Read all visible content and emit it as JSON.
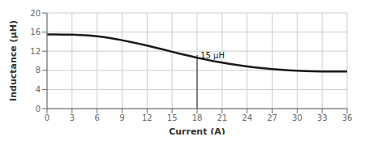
{
  "chart_data": {
    "type": "line",
    "title": "",
    "xlabel": "Current (A)",
    "ylabel": "Inductance (μH)",
    "x": [
      0,
      0.5,
      1,
      2,
      3,
      4,
      5,
      6,
      7,
      8,
      9,
      10,
      11,
      12,
      13,
      14,
      15,
      16,
      17,
      18,
      19,
      20,
      21,
      22,
      23,
      24,
      25,
      26,
      27,
      28,
      29,
      30,
      31,
      32,
      33,
      34,
      35,
      36
    ],
    "values": [
      15.5,
      15.5,
      15.5,
      15.48,
      15.45,
      15.38,
      15.28,
      15.12,
      14.9,
      14.62,
      14.3,
      13.95,
      13.58,
      13.18,
      12.75,
      12.32,
      11.88,
      11.45,
      11.05,
      10.65,
      10.28,
      9.93,
      9.62,
      9.33,
      9.07,
      8.83,
      8.62,
      8.43,
      8.27,
      8.13,
      8.01,
      7.92,
      7.85,
      7.8,
      7.77,
      7.76,
      7.76,
      7.76
    ],
    "color": "#1a1a1a",
    "xlim": [
      0,
      36
    ],
    "ylim": [
      0,
      20
    ],
    "xticks": [
      0,
      3,
      6,
      9,
      12,
      15,
      18,
      21,
      24,
      27,
      30,
      33,
      36
    ],
    "yticks": [
      0,
      4,
      8,
      12,
      16,
      20
    ],
    "grid": true,
    "annotation": {
      "text": "15 μH",
      "x": 18.4,
      "y": 10.55,
      "line_x": 18,
      "line_y": [
        0,
        11.2
      ]
    }
  }
}
